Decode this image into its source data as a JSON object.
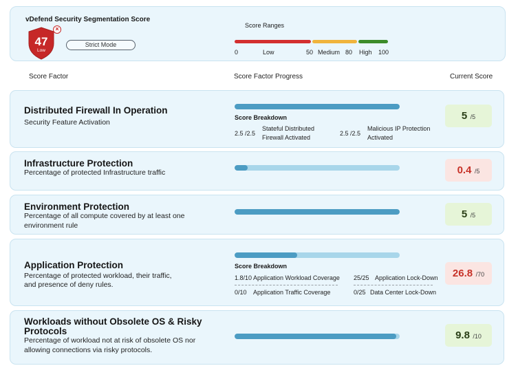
{
  "header": {
    "title": "vDefend Security Segmentation Score",
    "score": "47",
    "score_level": "Low",
    "mode_label": "Strict Mode",
    "colors": {
      "shield": "#c62828",
      "badge_x": "#c62828"
    }
  },
  "score_ranges": {
    "title": "Score Ranges",
    "labels": [
      "0",
      "Low",
      "50",
      "Medium",
      "80",
      "High",
      "100"
    ],
    "segments": [
      {
        "name": "Low",
        "from": 0,
        "to": 50,
        "color": "#d32f2f"
      },
      {
        "name": "Medium",
        "from": 50,
        "to": 80,
        "color": "#f0b43c"
      },
      {
        "name": "High",
        "from": 80,
        "to": 100,
        "color": "#3c8c2a"
      }
    ]
  },
  "columns": {
    "factor": "Score Factor",
    "progress": "Score Factor Progress",
    "current": "Current Score"
  },
  "factors": [
    {
      "title": "Distributed Firewall In Operation",
      "description": [
        "Security Feature Activation"
      ],
      "progress": 1.0,
      "breakdown_title": "Score Breakdown",
      "breakdown": [
        {
          "value": "2.5 /2.5",
          "label": [
            "Stateful Distributed",
            "Firewall Activated"
          ]
        },
        {
          "value": "2.5 /2.5",
          "label": [
            "Malicious IP Protection",
            "Activated"
          ]
        }
      ],
      "score": "5",
      "max": "/5",
      "status": "good"
    },
    {
      "title": "Infrastructure Protection",
      "description": [
        "Percentage of protected Infrastructure traffic"
      ],
      "progress": 0.08,
      "score": "0.4",
      "max": "/5",
      "status": "bad"
    },
    {
      "title": "Environment Protection",
      "description": [
        "Percentage of all compute covered by at least one",
        "environment rule"
      ],
      "progress": 1.0,
      "score": "5",
      "max": "/5",
      "status": "good"
    },
    {
      "title": "Application Protection",
      "description": [
        "Percentage of protected workload, their traffic,",
        "and presence of deny rules."
      ],
      "progress": 0.38,
      "breakdown_title": "Score Breakdown",
      "breakdown": [
        {
          "value": "1.8/10",
          "label": [
            "Application Workload Coverage"
          ]
        },
        {
          "value": "25/25",
          "label": [
            "Application Lock-Down"
          ]
        },
        {
          "value": "0/10",
          "label": [
            "Application Traffic Coverage"
          ]
        },
        {
          "value": "0/25",
          "label": [
            "Data Center Lock-Down"
          ]
        }
      ],
      "score": "26.8",
      "max": "/70",
      "status": "bad"
    },
    {
      "title": [
        "Workloads without Obsolete OS & Risky",
        "Protocols"
      ],
      "description": [
        "Percentage of workload not at risk of obsolete OS nor",
        "allowing connections via risky protocols."
      ],
      "progress": 0.98,
      "score": "9.8",
      "max": "/10",
      "status": "good"
    }
  ]
}
